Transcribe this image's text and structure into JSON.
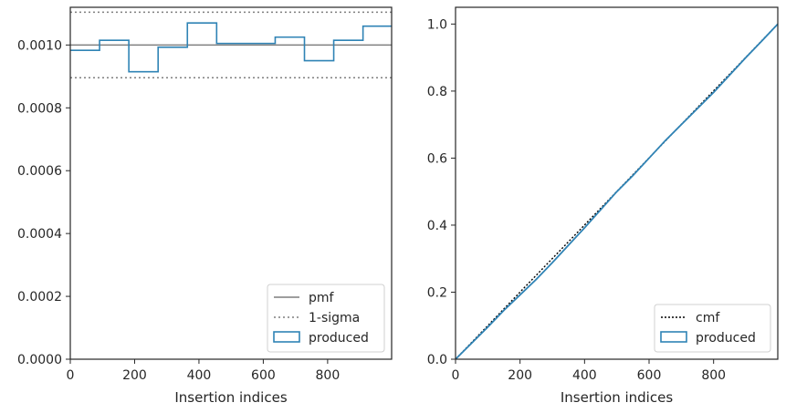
{
  "colors": {
    "produced": "#2f83b5",
    "pmf": "#7f7f7f",
    "sigma": "#7f7f7f",
    "cmf": "#000000",
    "axis": "#262626"
  },
  "chart_data": [
    {
      "type": "line",
      "title": "",
      "xlabel": "Insertion indices",
      "ylabel": "",
      "xlim": [
        0,
        999
      ],
      "ylim": [
        0,
        0.00112
      ],
      "xticks": [
        0,
        200,
        400,
        600,
        800
      ],
      "xtick_labels": [
        "0",
        "200",
        "400",
        "600",
        "800"
      ],
      "yticks": [
        0,
        0.0002,
        0.0004,
        0.0006,
        0.0008,
        0.001
      ],
      "ytick_labels": [
        "0.0000",
        "0.0002",
        "0.0004",
        "0.0006",
        "0.0008",
        "0.0010"
      ],
      "grid": false,
      "legend_position": "lower right",
      "legend": [
        "pmf",
        "1-sigma",
        "produced"
      ],
      "pmf": 0.001,
      "sigma_band": [
        0.000896,
        0.0011045
      ],
      "series": [
        {
          "name": "produced",
          "style": "step",
          "bin_edges": [
            0,
            91,
            182,
            273,
            364,
            455,
            546,
            637,
            728,
            819,
            910,
            999
          ],
          "values": [
            0.000983,
            0.001015,
            0.000915,
            0.000993,
            0.00107,
            0.001005,
            0.001005,
            0.001025,
            0.00095,
            0.001015,
            0.00106
          ]
        }
      ]
    },
    {
      "type": "line",
      "title": "",
      "xlabel": "Insertion indices",
      "ylabel": "",
      "xlim": [
        0,
        999
      ],
      "ylim": [
        0,
        1.05
      ],
      "xticks": [
        0,
        200,
        400,
        600,
        800
      ],
      "xtick_labels": [
        "0",
        "200",
        "400",
        "600",
        "800"
      ],
      "yticks": [
        0,
        0.2,
        0.4,
        0.6,
        0.8,
        1.0
      ],
      "ytick_labels": [
        "0.0",
        "0.2",
        "0.4",
        "0.6",
        "0.8",
        "1.0"
      ],
      "grid": false,
      "legend_position": "lower right",
      "legend": [
        "cmf",
        "produced"
      ],
      "series": [
        {
          "name": "cmf",
          "style": "dotted",
          "x": [
            0,
            999
          ],
          "y": [
            0,
            1.0
          ]
        },
        {
          "name": "produced",
          "style": "line",
          "x": [
            0,
            50,
            100,
            150,
            200,
            250,
            300,
            350,
            400,
            450,
            500,
            550,
            600,
            650,
            700,
            750,
            800,
            850,
            900,
            950,
            999
          ],
          "y": [
            0,
            0.048,
            0.096,
            0.146,
            0.192,
            0.238,
            0.288,
            0.34,
            0.392,
            0.446,
            0.5,
            0.548,
            0.6,
            0.652,
            0.7,
            0.748,
            0.796,
            0.848,
            0.9,
            0.95,
            1.0
          ]
        }
      ]
    }
  ]
}
